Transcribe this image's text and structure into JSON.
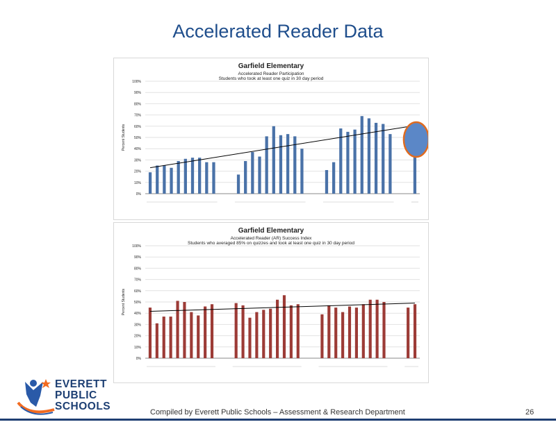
{
  "slide": {
    "title": "Accelerated Reader Data",
    "footer": "Compiled  by Everett Public Schools – Assessment & Research Department",
    "page_number": "26"
  },
  "logo": {
    "line1": "EVERETT",
    "line2": "PUBLIC",
    "line3": "SCHOOLS",
    "colors": {
      "blue": "#1d3f73",
      "orange": "#f26b21",
      "figure": "#2a5aa8"
    }
  },
  "colors": {
    "blue_bars": "#4a72a8",
    "red_bars": "#9c3b36",
    "highlight_fill": "#5b87c7",
    "highlight_stroke": "#e06b1f",
    "trend": "#000000",
    "grid": "#e2e2e2"
  },
  "chart_data": [
    {
      "type": "bar",
      "title": "Garfield Elementary",
      "subtitle": "Accelerated Reader Participation",
      "subtitle2": "Students who took at least one quiz in 30 day period",
      "ylabel": "Percent Students",
      "ylim": [
        0,
        100
      ],
      "yticks": [
        "0%",
        "10%",
        "20%",
        "30%",
        "40%",
        "50%",
        "60%",
        "70%",
        "80%",
        "90%",
        "100%"
      ],
      "trendline": true,
      "highlight_last": true,
      "groups": [
        {
          "values": [
            19,
            25,
            25,
            23,
            29,
            31,
            32,
            32,
            28,
            28
          ]
        },
        {
          "values": [
            17,
            29,
            37,
            33,
            51,
            60,
            52,
            53,
            51,
            40
          ]
        },
        {
          "values": [
            21,
            28,
            58,
            55,
            57,
            69,
            67,
            63,
            62,
            53
          ]
        },
        {
          "values": [
            35
          ]
        }
      ]
    },
    {
      "type": "bar",
      "title": "Garfield Elementary",
      "subtitle": "Accelerated Reader (AR) Success Index",
      "subtitle2": "Students who averaged 85% on quizzes and took at least one quiz in 30 day period",
      "ylabel": "Percent Students",
      "ylim": [
        0,
        100
      ],
      "yticks": [
        "0%",
        "10%",
        "20%",
        "30%",
        "40%",
        "50%",
        "60%",
        "70%",
        "80%",
        "90%",
        "100%"
      ],
      "trendline": true,
      "groups": [
        {
          "values": [
            45,
            31,
            37,
            37,
            51,
            50,
            41,
            38,
            46,
            48
          ]
        },
        {
          "values": [
            49,
            47,
            36,
            41,
            43,
            44,
            52,
            56,
            47,
            48
          ]
        },
        {
          "values": [
            39,
            47,
            45,
            41,
            46,
            45,
            48,
            52,
            52,
            50
          ]
        },
        {
          "values": [
            45,
            48
          ]
        }
      ]
    }
  ]
}
